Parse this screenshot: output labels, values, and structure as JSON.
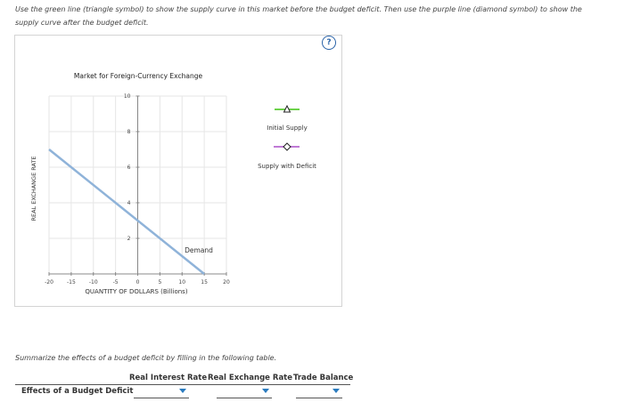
{
  "instructions": "Use the green line (triangle symbol) to show the supply curve in this market before the budget deficit. Then use the purple line (diamond symbol) to show the supply curve after the budget deficit.",
  "help_symbol": "?",
  "colors": {
    "demand_line": "#8fb3d9",
    "initial_supply": "#6dd24a",
    "supply_with_deficit": "#c07ad6",
    "accent_blue": "#2a63a8"
  },
  "chart_data": {
    "type": "line",
    "title": "Market for Foreign-Currency Exchange",
    "xlabel": "QUANTITY OF DOLLARS (Billions)",
    "ylabel": "REAL EXCHANGE RATE",
    "xlim": [
      -20,
      20
    ],
    "ylim": [
      0,
      10
    ],
    "x_ticks": [
      "-20",
      "-15",
      "-10",
      "-5",
      "0",
      "5",
      "10",
      "15",
      "20"
    ],
    "y_ticks": [
      "2",
      "4",
      "6",
      "8",
      "10"
    ],
    "grid": true,
    "series": [
      {
        "name": "Demand",
        "x": [
          -20,
          15
        ],
        "y": [
          7,
          0
        ]
      }
    ]
  },
  "legend": {
    "initial_supply": "Initial Supply",
    "supply_with_deficit": "Supply with Deficit"
  },
  "summary_prompt": "Summarize the effects of a budget deficit by filling in the following table.",
  "table": {
    "columns": [
      "Real Interest Rate",
      "Real Exchange Rate",
      "Trade Balance"
    ],
    "row_label": "Effects of a Budget Deficit"
  }
}
